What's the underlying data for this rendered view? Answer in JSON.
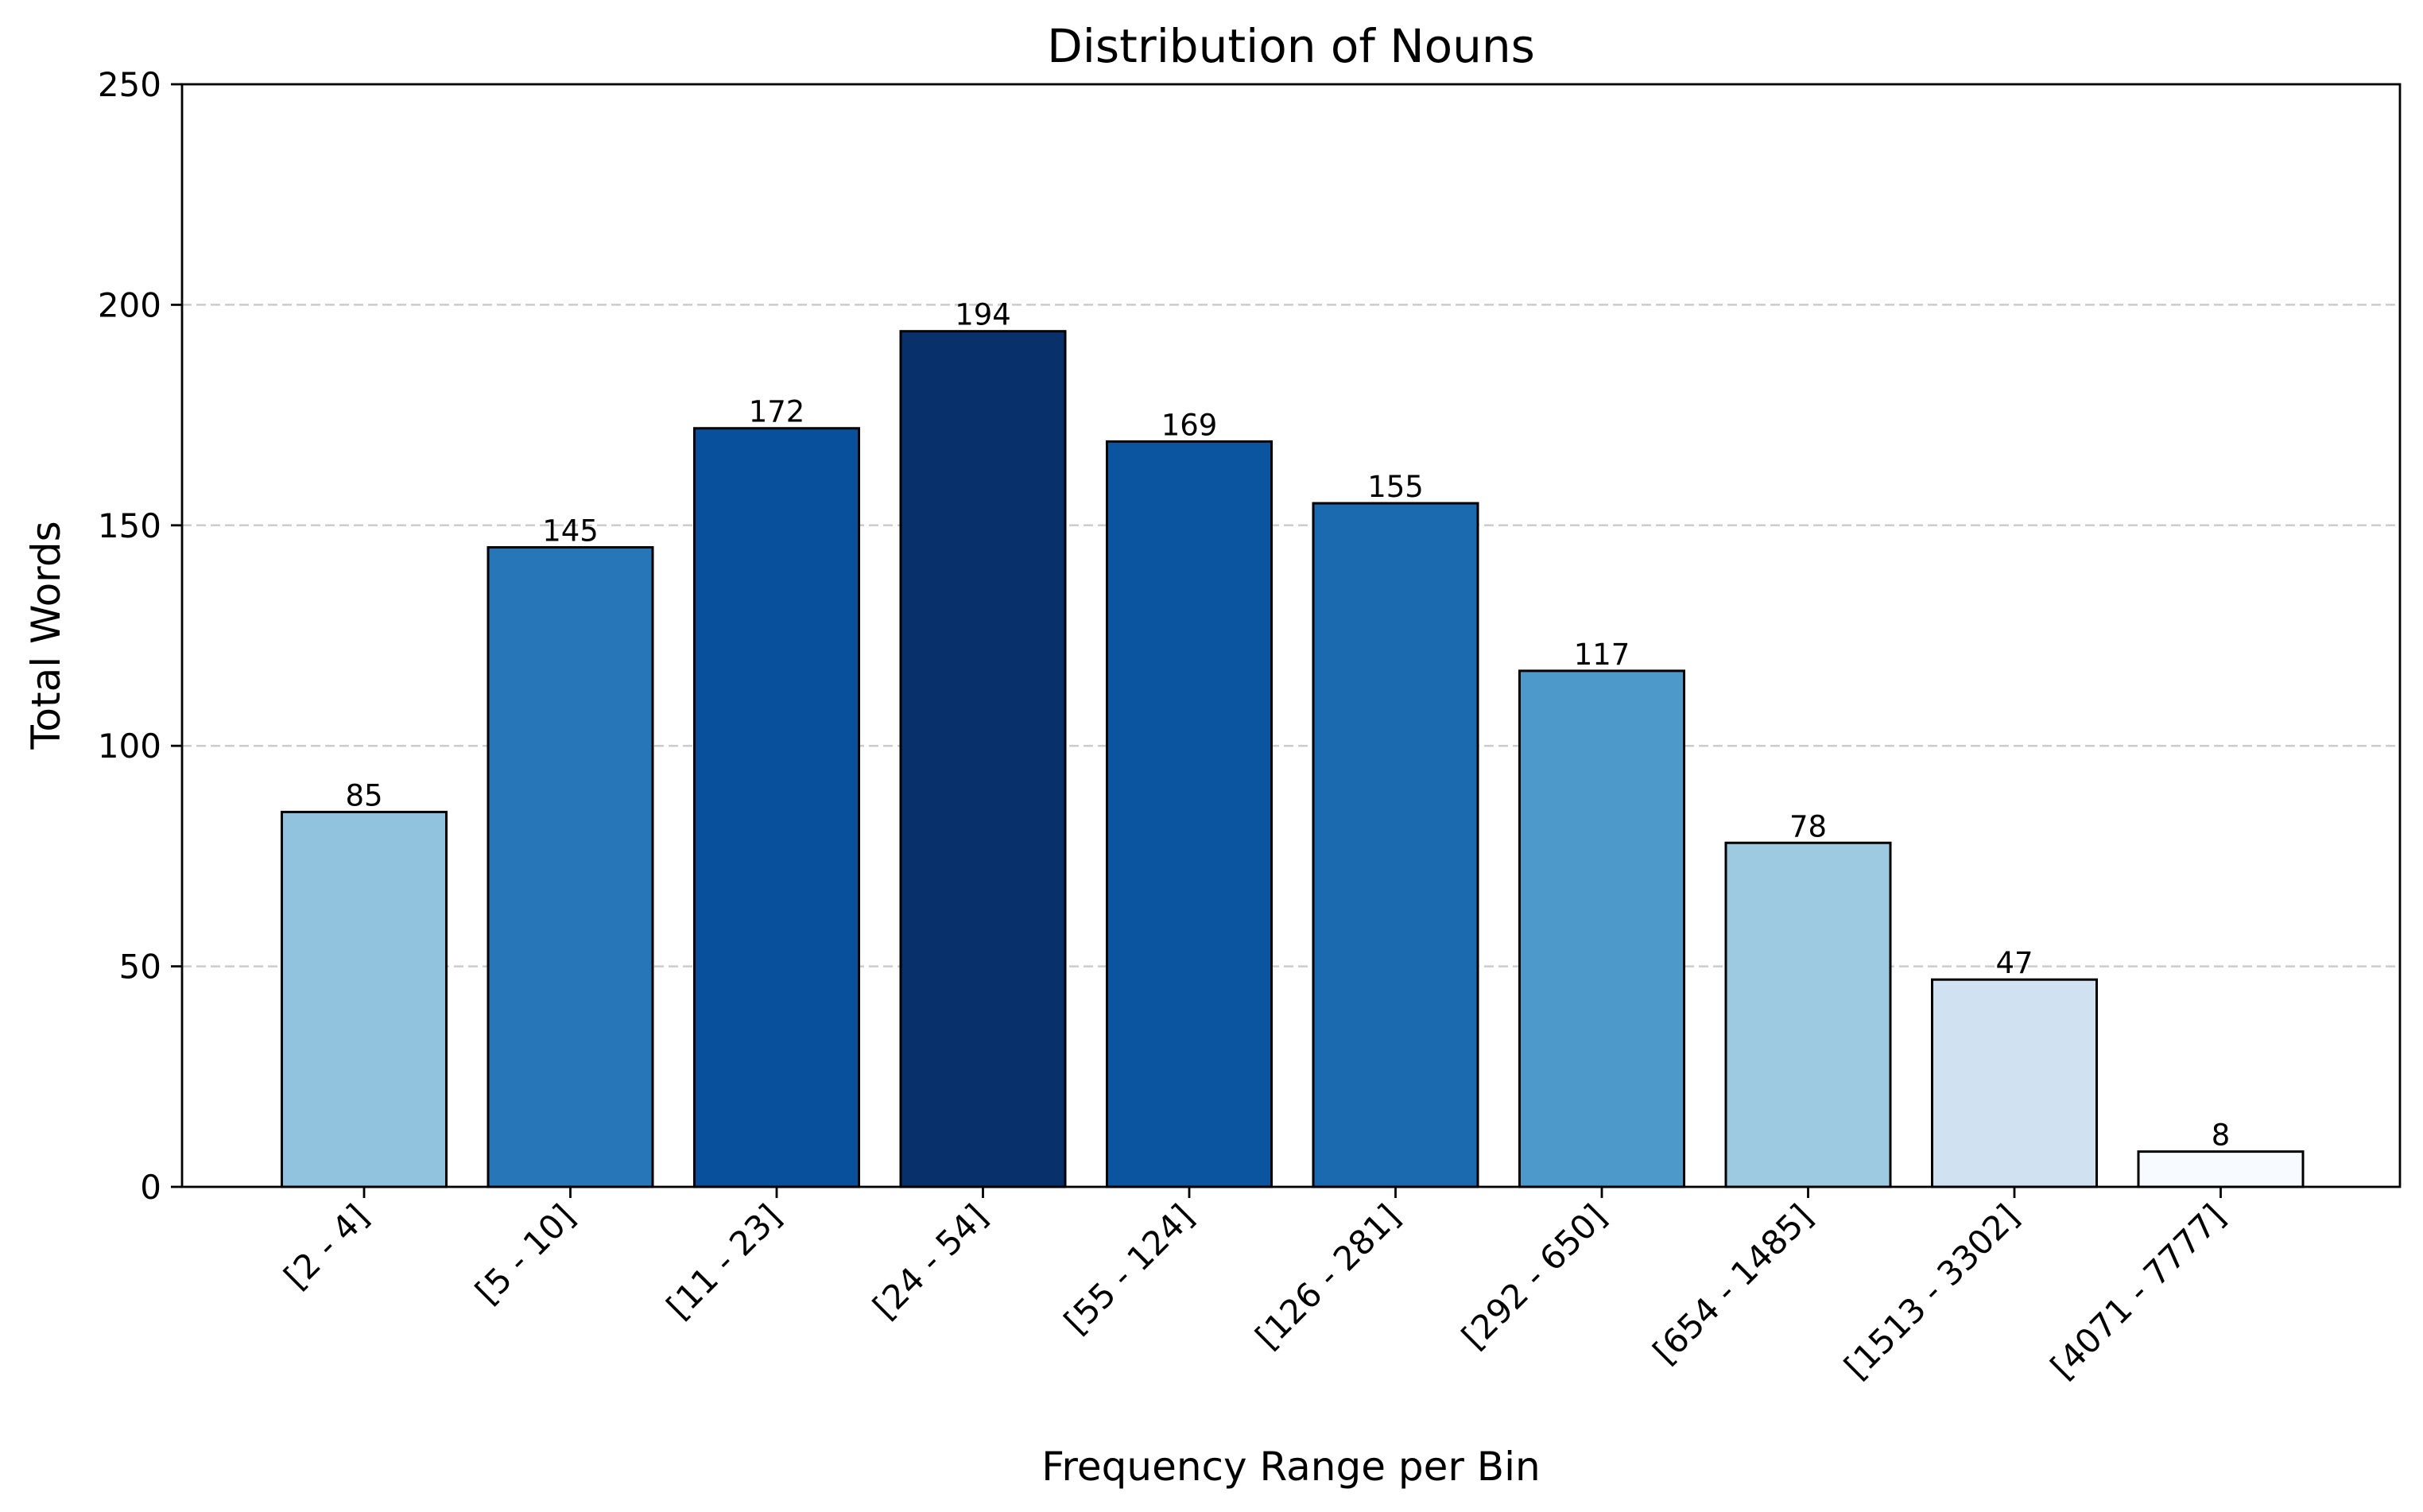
{
  "chart_data": {
    "type": "bar",
    "title": "Distribution of Nouns",
    "xlabel": "Frequency Range per Bin",
    "ylabel": "Total Words",
    "categories": [
      "[2 - 4]",
      "[5 - 10]",
      "[11 - 23]",
      "[24 - 54]",
      "[55 - 124]",
      "[126 - 281]",
      "[292 - 650]",
      "[654 - 1485]",
      "[1513 - 3302]",
      "[4071 - 7777]"
    ],
    "values": [
      85,
      145,
      172,
      194,
      169,
      155,
      117,
      78,
      47,
      8
    ],
    "colors": [
      "#91c2de",
      "#2676b8",
      "#08509b",
      "#08306b",
      "#0b55a0",
      "#1b69af",
      "#4d99ca",
      "#9ecae1",
      "#d0e1f2",
      "#f7fbff"
    ],
    "ylim": [
      0,
      250
    ],
    "yticks": [
      0,
      50,
      100,
      150,
      200,
      250
    ],
    "grid": "y-dashed",
    "legend": "none"
  }
}
